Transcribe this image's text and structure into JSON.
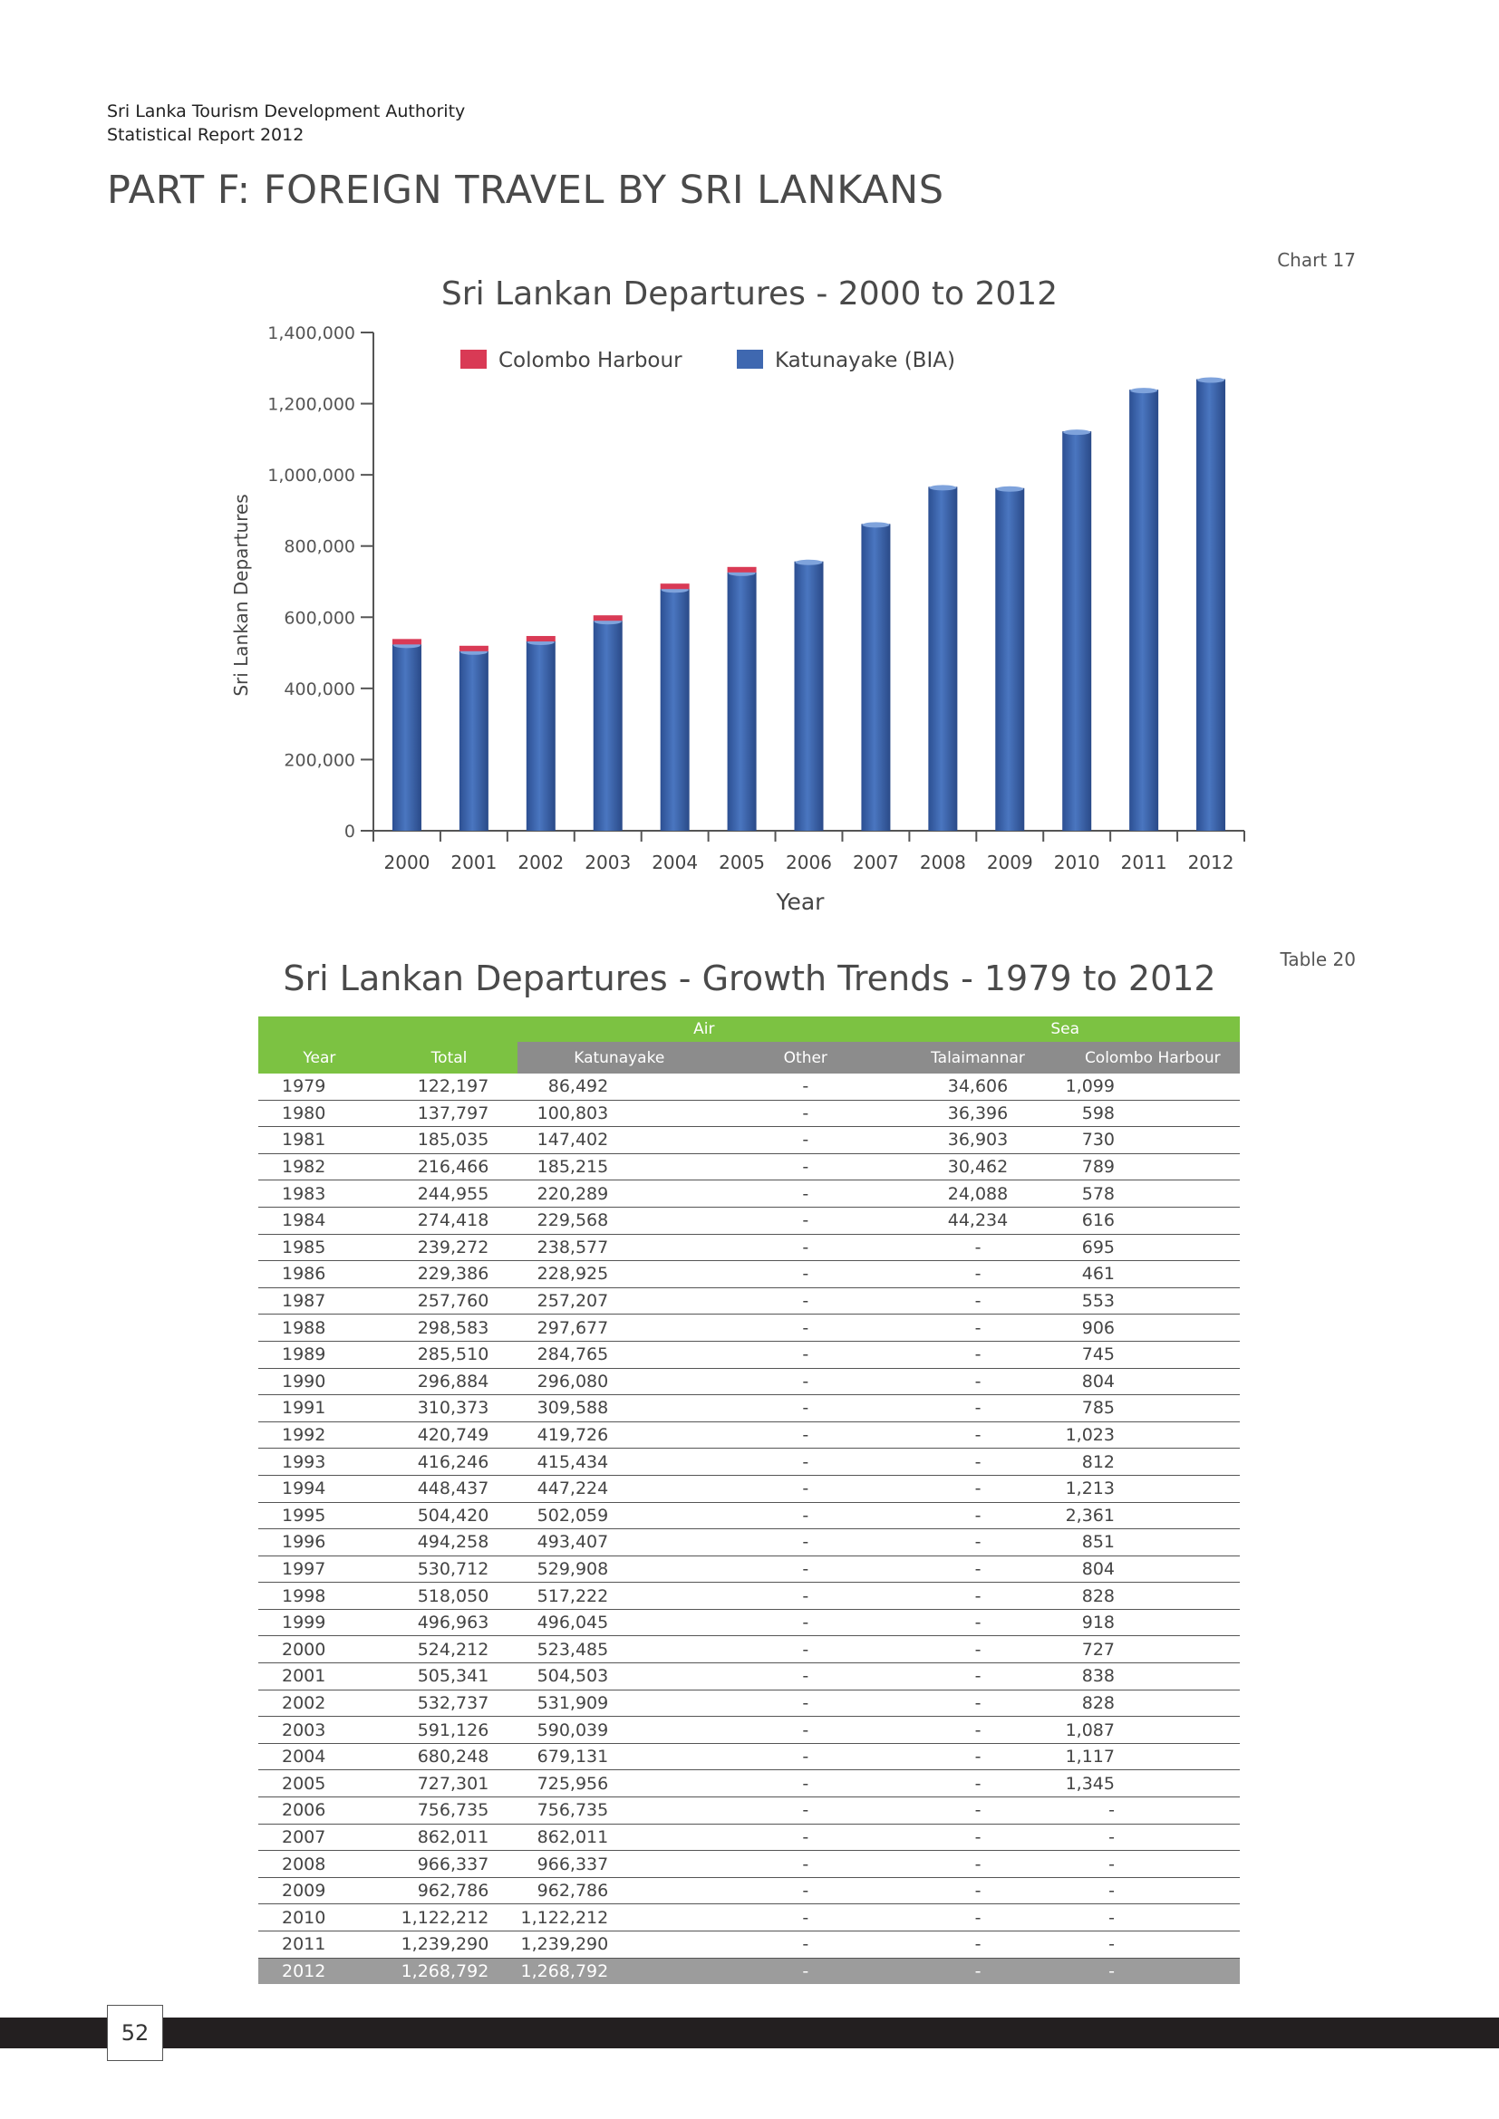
{
  "header": {
    "org": "Sri Lanka Tourism Development Authority",
    "report": "Statistical Report 2012",
    "part_title": "PART F: FOREIGN TRAVEL BY SRI LANKANS",
    "chart_number": "Chart 17",
    "table_number": "Table 20"
  },
  "chart_data": {
    "type": "bar",
    "stacked": true,
    "title": "Sri Lankan Departures - 2000 to 2012",
    "xlabel": "Year",
    "ylabel": "Sri Lankan Departures",
    "ylim": [
      0,
      1400000
    ],
    "yticks": [
      "0",
      "200,000",
      "400,000",
      "600,000",
      "800,000",
      "1,000,000",
      "1,200,000",
      "1,400,000"
    ],
    "legend_position": "top",
    "categories": [
      "2000",
      "2001",
      "2002",
      "2003",
      "2004",
      "2005",
      "2006",
      "2007",
      "2008",
      "2009",
      "2010",
      "2011",
      "2012"
    ],
    "series": [
      {
        "name": "Katunayake (BIA)",
        "color": "#3f68b0",
        "values": [
          523485,
          504503,
          531909,
          590039,
          679131,
          725956,
          756735,
          862011,
          966337,
          962786,
          1122212,
          1239290,
          1268792
        ]
      },
      {
        "name": "Colombo Harbour",
        "color": "#d93a55",
        "values": [
          727,
          838,
          828,
          1087,
          1117,
          1345,
          0,
          0,
          0,
          0,
          0,
          0,
          0
        ]
      }
    ]
  },
  "table": {
    "title": "Sri Lankan Departures - Growth Trends - 1979 to 2012",
    "group_headers": {
      "air": "Air",
      "sea": "Sea"
    },
    "columns": [
      "Year",
      "Total",
      "Katunayake",
      "Other",
      "Talaimannar",
      "Colombo Harbour"
    ],
    "rows": [
      [
        "1979",
        "122,197",
        "86,492",
        "-",
        "34,606",
        "1,099"
      ],
      [
        "1980",
        "137,797",
        "100,803",
        "-",
        "36,396",
        "598"
      ],
      [
        "1981",
        "185,035",
        "147,402",
        "-",
        "36,903",
        "730"
      ],
      [
        "1982",
        "216,466",
        "185,215",
        "-",
        "30,462",
        "789"
      ],
      [
        "1983",
        "244,955",
        "220,289",
        "-",
        "24,088",
        "578"
      ],
      [
        "1984",
        "274,418",
        "229,568",
        "-",
        "44,234",
        "616"
      ],
      [
        "1985",
        "239,272",
        "238,577",
        "-",
        "-",
        "695"
      ],
      [
        "1986",
        "229,386",
        "228,925",
        "-",
        "-",
        "461"
      ],
      [
        "1987",
        "257,760",
        "257,207",
        "-",
        "-",
        "553"
      ],
      [
        "1988",
        "298,583",
        "297,677",
        "-",
        "-",
        "906"
      ],
      [
        "1989",
        "285,510",
        "284,765",
        "-",
        "-",
        "745"
      ],
      [
        "1990",
        "296,884",
        "296,080",
        "-",
        "-",
        "804"
      ],
      [
        "1991",
        "310,373",
        "309,588",
        "-",
        "-",
        "785"
      ],
      [
        "1992",
        "420,749",
        "419,726",
        "-",
        "-",
        "1,023"
      ],
      [
        "1993",
        "416,246",
        "415,434",
        "-",
        "-",
        "812"
      ],
      [
        "1994",
        "448,437",
        "447,224",
        "-",
        "-",
        "1,213"
      ],
      [
        "1995",
        "504,420",
        "502,059",
        "-",
        "-",
        "2,361"
      ],
      [
        "1996",
        "494,258",
        "493,407",
        "-",
        "-",
        "851"
      ],
      [
        "1997",
        "530,712",
        "529,908",
        "-",
        "-",
        "804"
      ],
      [
        "1998",
        "518,050",
        "517,222",
        "-",
        "-",
        "828"
      ],
      [
        "1999",
        "496,963",
        "496,045",
        "-",
        "-",
        "918"
      ],
      [
        "2000",
        "524,212",
        "523,485",
        "-",
        "-",
        "727"
      ],
      [
        "2001",
        "505,341",
        "504,503",
        "-",
        "-",
        "838"
      ],
      [
        "2002",
        "532,737",
        "531,909",
        "-",
        "-",
        "828"
      ],
      [
        "2003",
        "591,126",
        "590,039",
        "-",
        "-",
        "1,087"
      ],
      [
        "2004",
        "680,248",
        "679,131",
        "-",
        "-",
        "1,117"
      ],
      [
        "2005",
        "727,301",
        "725,956",
        "-",
        "-",
        "1,345"
      ],
      [
        "2006",
        "756,735",
        "756,735",
        "-",
        "-",
        "-"
      ],
      [
        "2007",
        "862,011",
        "862,011",
        "-",
        "-",
        "-"
      ],
      [
        "2008",
        "966,337",
        "966,337",
        "-",
        "-",
        "-"
      ],
      [
        "2009",
        "962,786",
        "962,786",
        "-",
        "-",
        "-"
      ],
      [
        "2010",
        "1,122,212",
        "1,122,212",
        "-",
        "-",
        "-"
      ],
      [
        "2011",
        "1,239,290",
        "1,239,290",
        "-",
        "-",
        "-"
      ],
      [
        "2012",
        "1,268,792",
        "1,268,792",
        "-",
        "-",
        "-"
      ]
    ]
  },
  "footer": {
    "page_number": "52"
  }
}
